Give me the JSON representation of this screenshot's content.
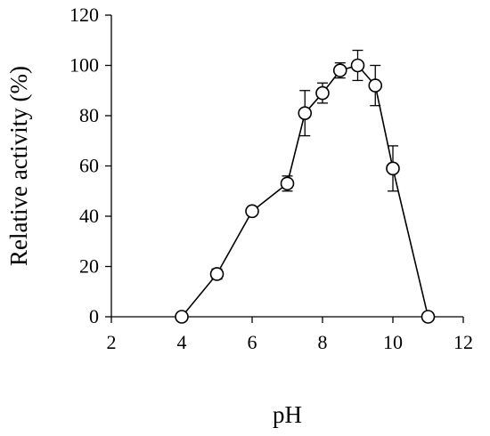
{
  "chart_data": {
    "type": "line",
    "title": "",
    "xlabel": "pH",
    "ylabel": "Relative activity (%)",
    "xlim": [
      2,
      12
    ],
    "ylim": [
      0,
      120
    ],
    "xticks": [
      "2",
      "4",
      "6",
      "8",
      "10",
      "12"
    ],
    "yticks": [
      "0",
      "20",
      "40",
      "60",
      "80",
      "100",
      "120"
    ],
    "grid": false,
    "legend": "none",
    "series": [
      {
        "x": [
          4,
          5,
          6,
          7,
          7.5,
          8,
          8.5,
          9,
          9.5,
          10,
          11
        ],
        "y": [
          0,
          17,
          42,
          53,
          81,
          89,
          98,
          100,
          92,
          59,
          0
        ],
        "error": [
          0,
          2,
          1,
          3,
          9,
          4,
          3,
          6,
          8,
          9,
          0
        ],
        "marker": "open-circle",
        "color": "#000000"
      }
    ]
  }
}
